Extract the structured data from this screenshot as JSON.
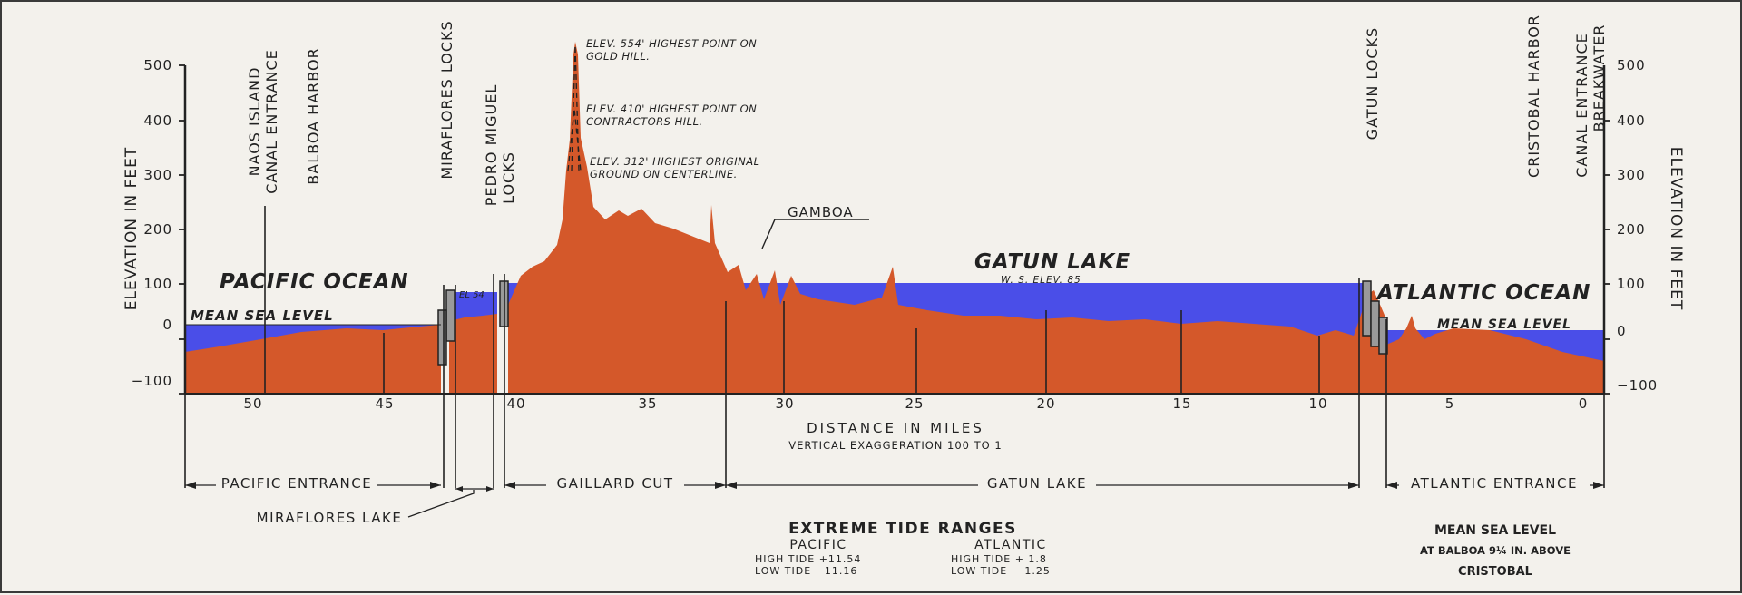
{
  "colors": {
    "water": "#4a4ee8",
    "ground": "#d4582a",
    "ink": "#222222",
    "paper": "#f3f1ec"
  },
  "axis": {
    "left_label": "ELEVATION   IN   FEET",
    "right_label": "ELEVATION   IN   FEET",
    "left_ticks": [
      "500",
      "400",
      "300",
      "200",
      "100",
      "0",
      "−100"
    ],
    "right_ticks": [
      "500",
      "400",
      "300",
      "200",
      "100",
      "0",
      "−100"
    ],
    "x_ticks": [
      "50",
      "45",
      "40",
      "35",
      "30",
      "25",
      "20",
      "15",
      "10",
      "5",
      "0"
    ],
    "x_title": "DISTANCE      IN      MILES",
    "x_subtitle": "VERTICAL EXAGGERATION 100 TO 1"
  },
  "places": {
    "naos": "NAOS ISLAND",
    "canal_entrance_pac": "CANAL ENTRANCE",
    "balboa": "BALBOA HARBOR",
    "miraflores_locks": "MIRAFLORES  LOCKS",
    "pedro_miguel_1": "PEDRO  MIGUEL",
    "pedro_miguel_2": "LOCKS",
    "gamboa": "GAMBOA",
    "gatun_locks": "GATUN LOCKS",
    "cristobal": "CRISTOBAL HARBOR",
    "canal_entrance_atl": "CANAL ENTRANCE",
    "breakwater": "BREAKWATER"
  },
  "water_labels": {
    "pacific": "PACIFIC OCEAN",
    "pac_msl": "MEAN SEA LEVEL",
    "el54": "EL 54",
    "gatun_lake": "GATUN LAKE",
    "gatun_elev": "W. S. ELEV. 85",
    "atlantic": "ATLANTIC OCEAN",
    "atl_msl": "MEAN SEA LEVEL"
  },
  "notes": {
    "n1a": "ELEV. 554' HIGHEST POINT ON",
    "n1b": "GOLD HILL.",
    "n2a": "ELEV. 410' HIGHEST POINT ON",
    "n2b": "CONTRACTORS HILL.",
    "n3a": "ELEV. 312' HIGHEST ORIGINAL",
    "n3b": "GROUND ON CENTERLINE."
  },
  "sections": {
    "pacific_entrance": "PACIFIC ENTRANCE",
    "gaillard_cut": "GAILLARD CUT",
    "gatun_lake": "GATUN LAKE",
    "atlantic_entrance": "ATLANTIC ENTRANCE",
    "miraflores_lake": "MIRAFLORES LAKE"
  },
  "tides": {
    "title": "EXTREME TIDE RANGES",
    "pacific": "PACIFIC",
    "atlantic": "ATLANTIC",
    "pac_high": "HIGH TIDE  +11.54",
    "pac_low": "LOW  TIDE   −11.16",
    "atl_high": "HIGH TIDE   + 1.8",
    "atl_low": "LOW  TIDE   − 1.25"
  },
  "msl_note": {
    "l1": "MEAN SEA LEVEL",
    "l2": "AT BALBOA 9¼ IN. ABOVE",
    "l3": "CRISTOBAL"
  }
}
